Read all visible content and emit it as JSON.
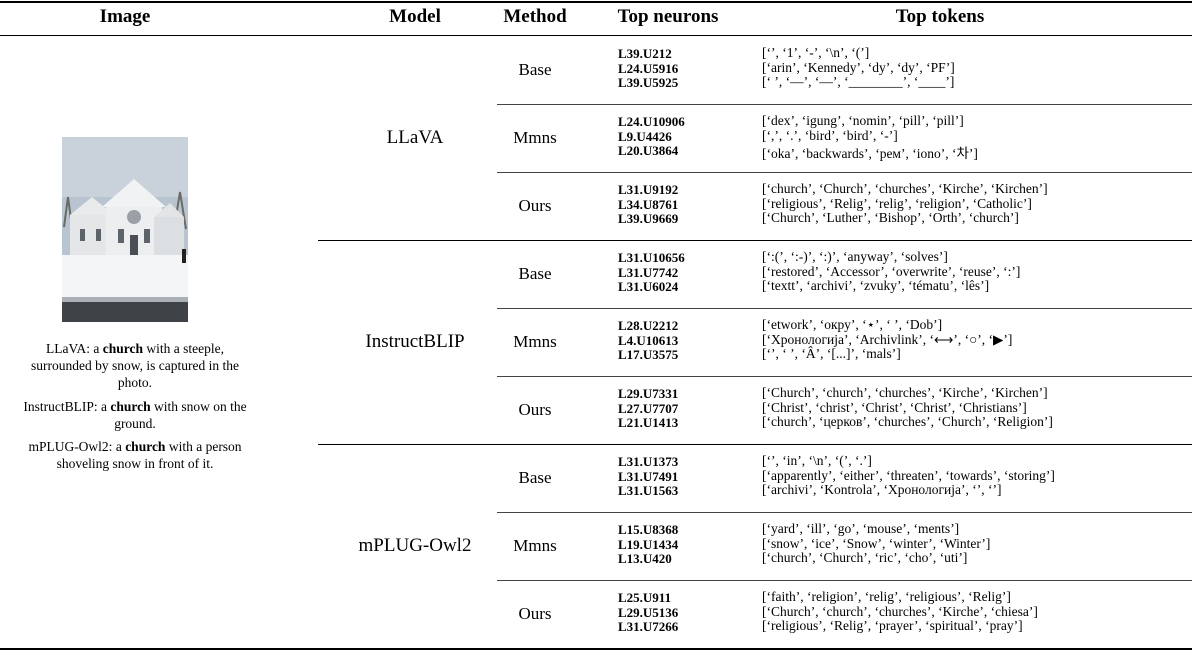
{
  "table": {
    "header": [
      "Image",
      "Model",
      "Method",
      "Top neurons",
      "Top tokens"
    ],
    "captions": [
      {
        "model": "LLaVA:",
        "prefix": "a",
        "keyword": "church",
        "text": "with a steeple, surrounded by snow, is captured in the photo."
      },
      {
        "model": "InstructBLIP:",
        "prefix": "a",
        "keyword": "church",
        "text": "with snow on the ground."
      },
      {
        "model": "mPLUG-Owl2:",
        "prefix": "a",
        "keyword": "church",
        "text": "with a person shoveling snow in front of it."
      }
    ],
    "groups": [
      {
        "model": "LLaVA",
        "methods": [
          {
            "method": "Base",
            "rows": [
              {
                "neuron": "L39.U212",
                "tokens": "[‘’, ‘1’, ‘-’, ‘\\n’, ‘(’]"
              },
              {
                "neuron": "L24.U5916",
                "tokens": "[‘arin’, ‘Kennedy’, ‘dy’, ‘dy’, ‘PF’]"
              },
              {
                "neuron": "L39.U5925",
                "tokens": "[‘ ’, ‘—’, ‘—’, ‘________’, ‘____’]"
              }
            ]
          },
          {
            "method": "Mmns",
            "rows": [
              {
                "neuron": "L24.U10906",
                "tokens": "[‘dex’, ‘igung’, ‘nomin’, ‘pill’, ‘pill’]"
              },
              {
                "neuron": "L9.U4426",
                "tokens": "[‘,’, ‘.’, ‘bird’, ‘bird’, ‘-’]"
              },
              {
                "neuron": "L20.U3864",
                "tokens": "[‘oka’, ‘backwards’, ‘рем’, ‘iono’, ‘차’]"
              }
            ]
          },
          {
            "method": "Ours",
            "rows": [
              {
                "neuron": "L31.U9192",
                "tokens": "[‘church’, ‘Church’, ‘churches’, ‘Kirche’, ‘Kirchen’]"
              },
              {
                "neuron": "L34.U8761",
                "tokens": "[‘religious’, ‘Relig’, ‘relig’, ‘religion’, ‘Catholic’]"
              },
              {
                "neuron": "L39.U9669",
                "tokens": "[‘Church’, ‘Luther’, ‘Bishop’, ‘Orth’, ‘church’]"
              }
            ]
          }
        ]
      },
      {
        "model": "InstructBLIP",
        "methods": [
          {
            "method": "Base",
            "rows": [
              {
                "neuron": "L31.U10656",
                "tokens": "[‘:(’, ‘:-)’, ‘:)’, ‘anyway’, ‘solves’]"
              },
              {
                "neuron": "L31.U7742",
                "tokens": "[‘restored’, ‘Accessor’, ‘overwrite’, ‘reuse’, ‘:’]"
              },
              {
                "neuron": "L31.U6024",
                "tokens": "[‘textt’, ‘archivi’, ‘zvuky’, ‘tématu’, ‘lês’]"
              }
            ]
          },
          {
            "method": "Mmns",
            "rows": [
              {
                "neuron": "L28.U2212",
                "tokens": "[‘etwork’, ‘окру’, ‘⋆’, ‘ ’, ‘Dob’]"
              },
              {
                "neuron": "L4.U10613",
                "tokens": "[‘Хронологија’, ‘Archivlink’, ‘⟷’, ‘○’, ‘▶’]"
              },
              {
                "neuron": "L17.U3575",
                "tokens": "[‘’, ‘ ’, ‘Â’, ‘[...]’, ‘mals’]"
              }
            ]
          },
          {
            "method": "Ours",
            "rows": [
              {
                "neuron": "L29.U7331",
                "tokens": "[‘Church’, ‘church’, ‘churches’, ‘Kirche’, ‘Kirchen’]"
              },
              {
                "neuron": "L27.U7707",
                "tokens": "[‘Christ’, ‘christ’, ‘Christ’, ‘Christ’, ‘Christians’]"
              },
              {
                "neuron": "L21.U1413",
                "tokens": "[‘church’, ‘церков’, ‘churches’, ‘Church’, ‘Religion’]"
              }
            ]
          }
        ]
      },
      {
        "model": "mPLUG-Owl2",
        "methods": [
          {
            "method": "Base",
            "rows": [
              {
                "neuron": "L31.U1373",
                "tokens": "[‘’, ‘in’, ‘\\n’, ‘(’, ‘.’]"
              },
              {
                "neuron": "L31.U7491",
                "tokens": "[‘apparently’, ‘either’, ‘threaten’, ‘towards’, ‘storing’]"
              },
              {
                "neuron": "L31.U1563",
                "tokens": "[‘archivi’, ‘Kontrola’, ‘Хронологија’, ‘’, ‘’]"
              }
            ]
          },
          {
            "method": "Mmns",
            "rows": [
              {
                "neuron": "L15.U8368",
                "tokens": "[‘yard’, ‘ill’, ‘go’, ‘mouse’, ‘ments’]"
              },
              {
                "neuron": "L19.U1434",
                "tokens": "[‘snow’, ‘ice’, ‘Snow’, ‘winter’, ‘Winter’]"
              },
              {
                "neuron": "L13.U420",
                "tokens": "[‘church’, ‘Church’, ‘ric’, ‘cho’, ‘uti’]"
              }
            ]
          },
          {
            "method": "Ours",
            "rows": [
              {
                "neuron": "L25.U911",
                "tokens": "[‘faith’, ‘religion’, ‘relig’, ‘religious’, ‘Relig’]"
              },
              {
                "neuron": "L29.U5136",
                "tokens": "[‘Church’, ‘church’, ‘churches’, ‘Kirche’, ‘chiesa’]"
              },
              {
                "neuron": "L31.U7266",
                "tokens": "[‘religious’, ‘Relig’, ‘prayer’, ‘spiritual’, ‘pray’]"
              }
            ]
          }
        ]
      }
    ]
  }
}
